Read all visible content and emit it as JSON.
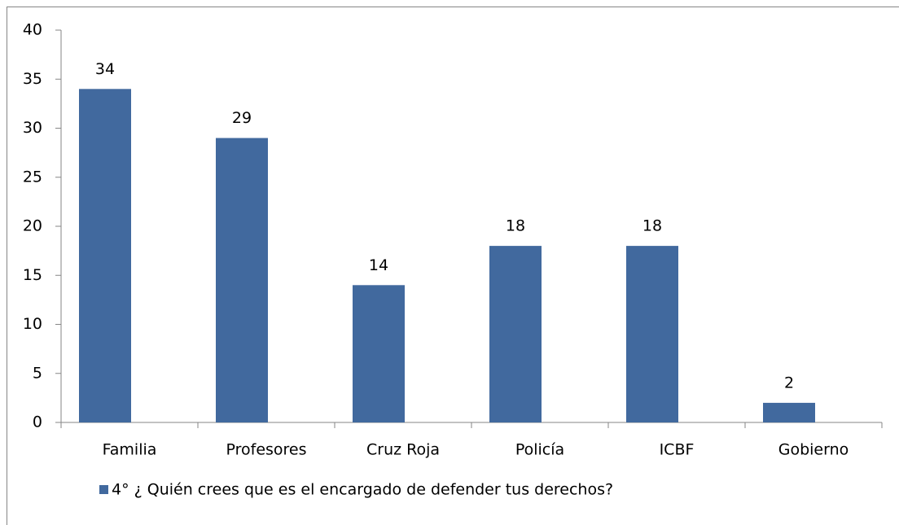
{
  "chart_data": {
    "type": "bar",
    "categories": [
      "Familia",
      "Profesores",
      "Cruz Roja",
      "Policía",
      "ICBF",
      "Gobierno"
    ],
    "series": [
      {
        "name": "4° ¿ Quién crees que es el encargado de defender tus derechos?",
        "color": "#41699e",
        "values": [
          34,
          29,
          14,
          18,
          18,
          2
        ]
      }
    ],
    "ylim": [
      0,
      40
    ],
    "yticks": [
      0,
      5,
      10,
      15,
      20,
      25,
      30,
      35,
      40
    ],
    "grid": false,
    "legend": "bottom",
    "data_labels": true
  }
}
